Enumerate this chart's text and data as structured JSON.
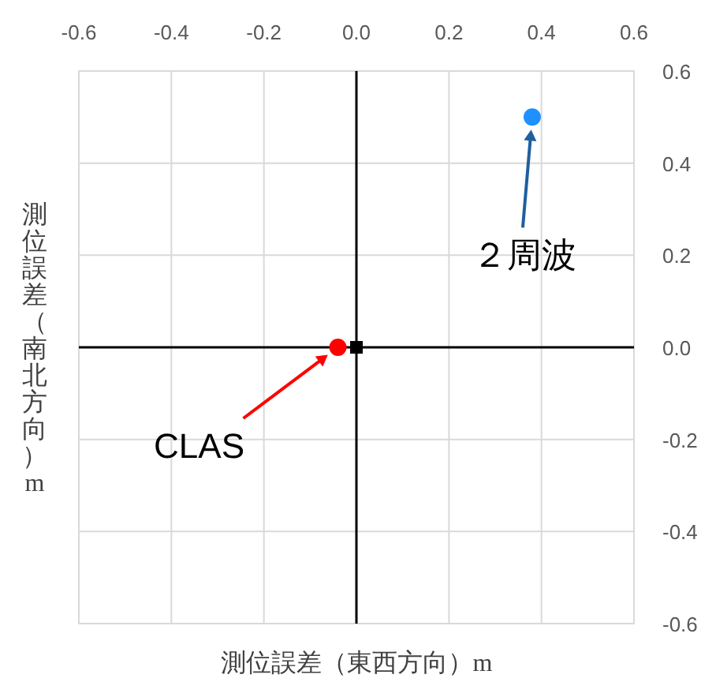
{
  "chart_data": {
    "type": "scatter",
    "xlabel": "測位誤差（東西方向）m",
    "ylabel": "測位誤差（南北方向）m",
    "xlim": [
      -0.6,
      0.6
    ],
    "xticks": [
      -0.6,
      -0.4,
      -0.2,
      {
        "value": 0,
        "label": "0.0"
      },
      0.2,
      0.4,
      0.6
    ],
    "ylim": [
      -0.6,
      0.6
    ],
    "yticks": [
      -0.6,
      -0.4,
      -0.2,
      {
        "value": 0,
        "label": "0.0"
      },
      0.2,
      0.4,
      0.6
    ],
    "grid": true,
    "series": [
      {
        "name": "CLAS",
        "color": "#ff0000",
        "x": [
          -0.04
        ],
        "values": [
          0.0
        ],
        "marker": "circle"
      },
      {
        "name": "２周波",
        "color": "#1e90ff",
        "x": [
          0.38
        ],
        "values": [
          0.5
        ],
        "marker": "circle"
      },
      {
        "color": "#000000",
        "x": [
          0
        ],
        "values": [
          0
        ],
        "marker": "square"
      }
    ]
  }
}
